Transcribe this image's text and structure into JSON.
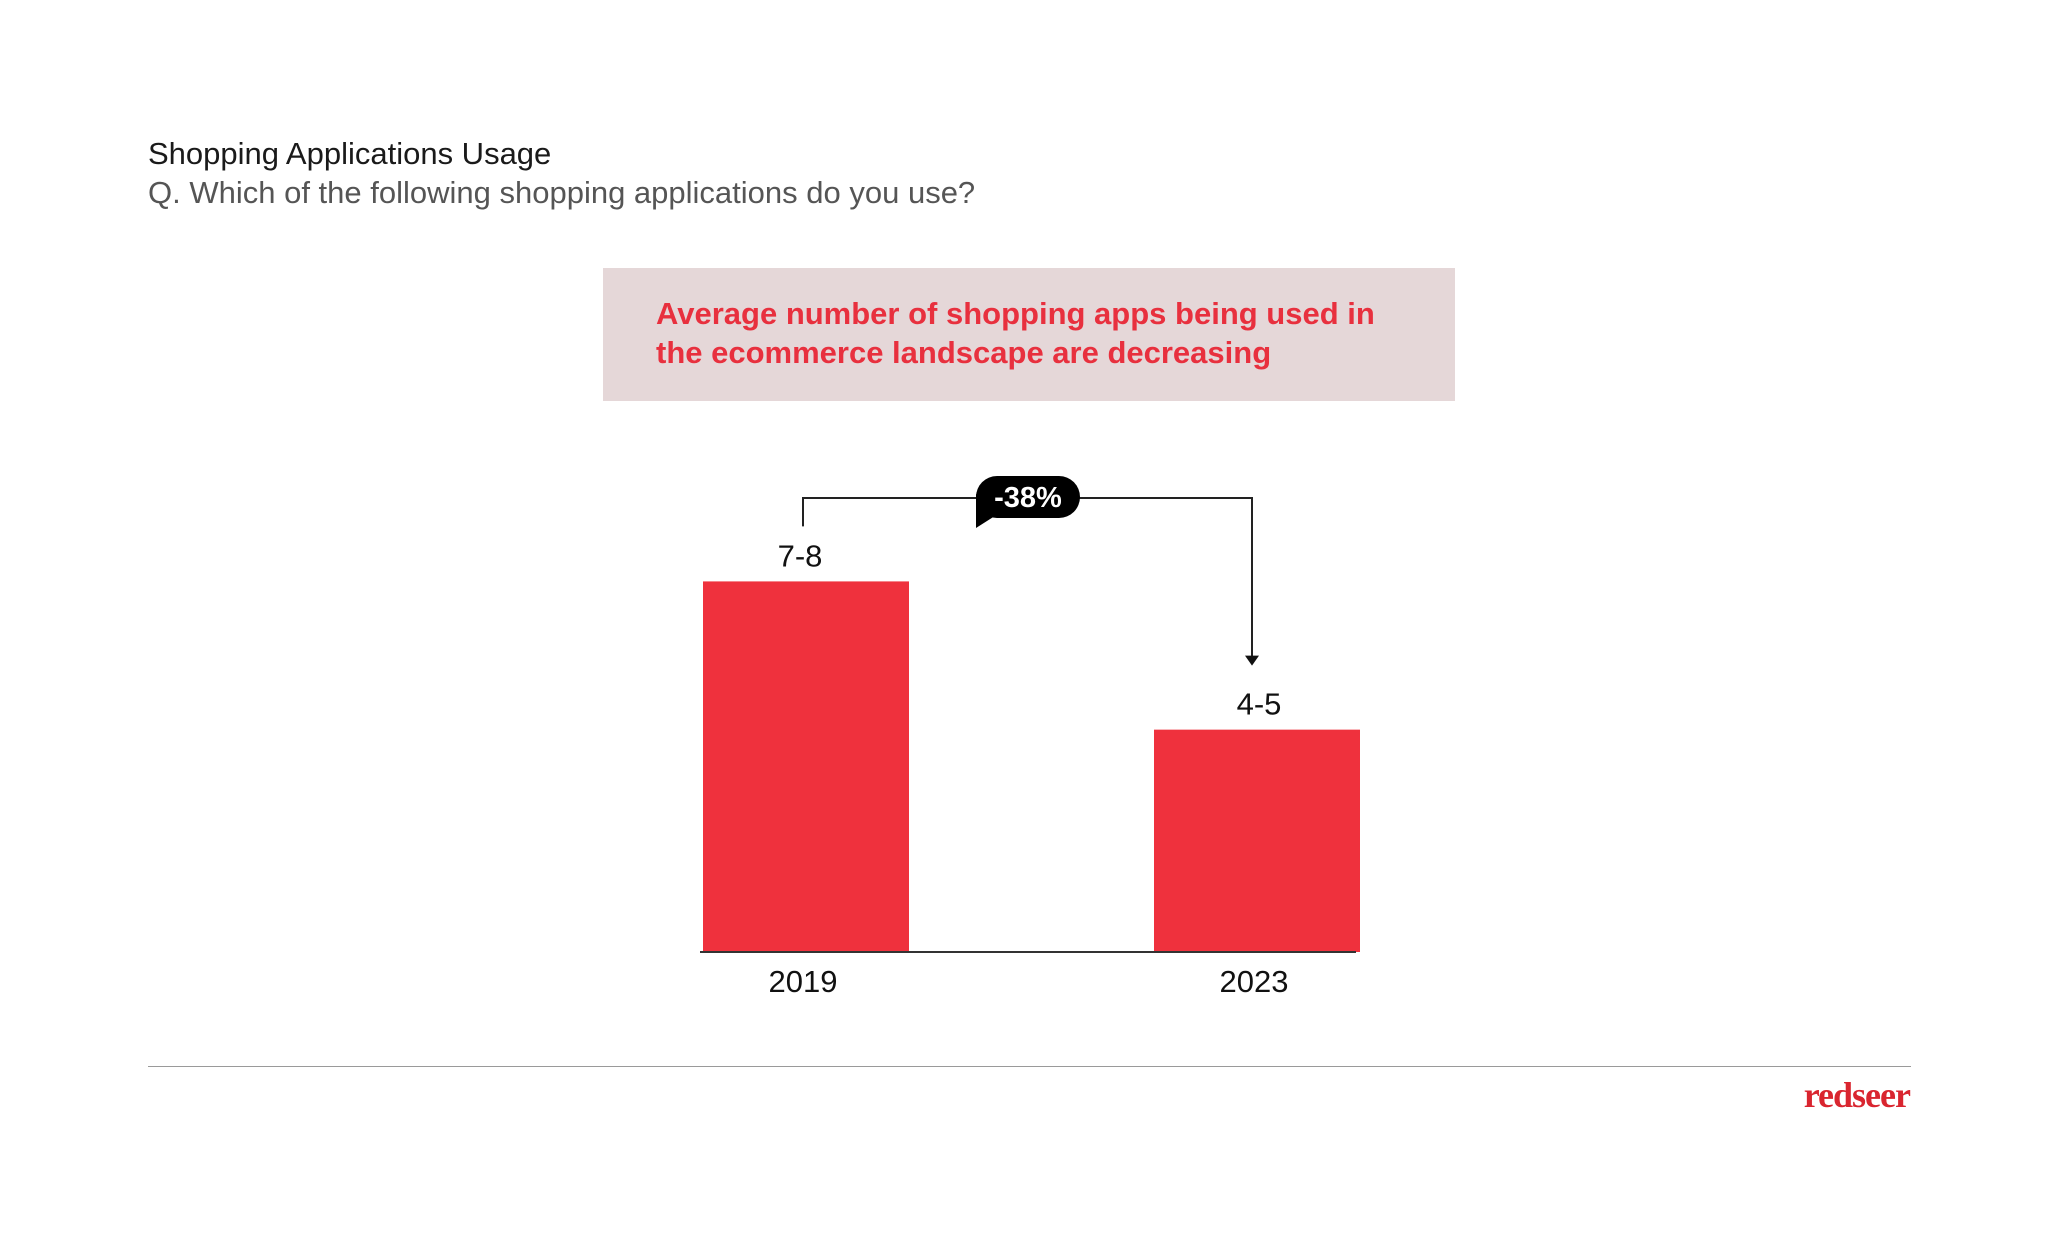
{
  "title": "Shopping Applications Usage",
  "subtitle": "Q. Which of the following shopping applications do you use?",
  "callout": "Average number of shopping apps being used in the ecommerce landscape are decreasing",
  "brand": "redseer",
  "colors": {
    "bar": "#ef313d",
    "callout_bg": "#e5d7d8",
    "callout_text": "#e8303e",
    "badge": "#000000"
  },
  "chart_data": {
    "type": "bar",
    "categories": [
      "2019",
      "2023"
    ],
    "values": [
      7.5,
      4.5
    ],
    "value_labels": [
      "7-8",
      "4-5"
    ],
    "change_label": "-38%",
    "xlabel": "",
    "ylabel": "",
    "ylim": [
      0,
      8.5
    ],
    "grid": false
  }
}
